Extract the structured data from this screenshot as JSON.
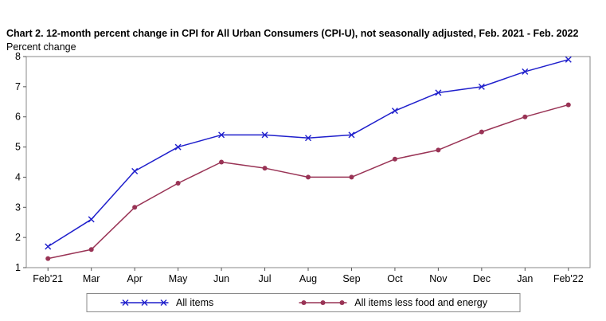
{
  "title": "Chart 2. 12-month percent change in CPI for All Urban Consumers (CPI-U), not seasonally adjusted, Feb. 2021 - Feb. 2022",
  "y_axis_label": "Percent change",
  "chart_data": {
    "type": "line",
    "categories": [
      "Feb'21",
      "Mar",
      "Apr",
      "May",
      "Jun",
      "Jul",
      "Aug",
      "Sep",
      "Oct",
      "Nov",
      "Dec",
      "Jan",
      "Feb'22"
    ],
    "series": [
      {
        "name": "All items",
        "marker": "x",
        "color": "#1f1fcc",
        "values": [
          1.7,
          2.6,
          4.2,
          5.0,
          5.4,
          5.4,
          5.3,
          5.4,
          6.2,
          6.8,
          7.0,
          7.5,
          7.9
        ]
      },
      {
        "name": "All items less food and energy",
        "marker": "circle",
        "color": "#993355",
        "values": [
          1.3,
          1.6,
          3.0,
          3.8,
          4.5,
          4.3,
          4.0,
          4.0,
          4.6,
          4.9,
          5.5,
          6.0,
          6.4
        ]
      }
    ],
    "ylim": [
      1,
      8
    ],
    "yticks": [
      1,
      2,
      3,
      4,
      5,
      6,
      7,
      8
    ],
    "grid": false,
    "legend_position": "bottom",
    "axis_color": "#8a8a8a",
    "tick_color": "#555555",
    "text_color": "#000000"
  }
}
